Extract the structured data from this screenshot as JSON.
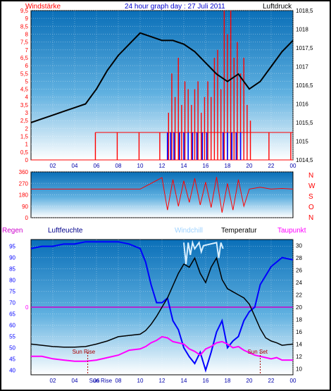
{
  "title": "24 hour graph day : 27 Juli 2011",
  "colors": {
    "red": "#ff0000",
    "blue": "#0000ff",
    "black": "#000000",
    "magenta": "#ff00ff",
    "lightblue": "#9fd3ff",
    "navy": "#00008b",
    "bg_top": "#0a6fb8",
    "bg_bottom": "#ffffff"
  },
  "x_ticks": [
    "02",
    "04",
    "06",
    "08",
    "10",
    "12",
    "14",
    "16",
    "18",
    "20",
    "22",
    "00"
  ],
  "chart_data": [
    {
      "type": "line",
      "name": "wind-and-pressure",
      "left_label": "Windstärke",
      "right_label": "Luftdruck",
      "left_ticks": [
        "0",
        "0,5",
        "1",
        "1,5",
        "2",
        "2,5",
        "3",
        "3,5",
        "4",
        "4,5",
        "5",
        "5,5",
        "6",
        "6,5",
        "7",
        "7,5",
        "8",
        "8,5",
        "9",
        "9,5"
      ],
      "right_ticks": [
        "1014,5",
        "1015",
        "1015,5",
        "1016",
        "1016,5",
        "1017",
        "1017,5",
        "1018",
        "1018,5"
      ],
      "ylim_left": [
        0,
        9.5
      ],
      "ylim_right": [
        1014.5,
        1018.5
      ],
      "x_hours": [
        0,
        24
      ],
      "pressure": {
        "x": [
          0,
          1,
          2,
          3,
          4,
          5,
          6,
          7,
          8,
          9,
          10,
          11,
          12,
          13,
          14,
          15,
          16,
          17,
          18,
          19,
          20,
          21,
          22,
          23,
          24
        ],
        "y": [
          1015.5,
          1015.6,
          1015.7,
          1015.8,
          1015.9,
          1016.0,
          1016.4,
          1016.9,
          1017.3,
          1017.6,
          1017.9,
          1017.8,
          1017.7,
          1017.7,
          1017.6,
          1017.4,
          1017.1,
          1016.8,
          1016.6,
          1016.8,
          1016.4,
          1016.6,
          1017.0,
          1017.4,
          1017.7
        ]
      },
      "wind_gust_note": "red bars = gusts, blue bars = average wind",
      "wind_gust_bars": [
        {
          "x": 5.9,
          "y": 1.75
        },
        {
          "x": 7.9,
          "y": 1.75
        },
        {
          "x": 9.9,
          "y": 1.75
        },
        {
          "x": 11.8,
          "y": 1.75
        },
        {
          "x": 12.6,
          "y": 3.0
        },
        {
          "x": 12.9,
          "y": 5.5
        },
        {
          "x": 13.2,
          "y": 4.0
        },
        {
          "x": 13.5,
          "y": 6.5
        },
        {
          "x": 13.8,
          "y": 3.5
        },
        {
          "x": 14.1,
          "y": 5.0
        },
        {
          "x": 14.4,
          "y": 4.5
        },
        {
          "x": 14.7,
          "y": 3.5
        },
        {
          "x": 15.0,
          "y": 4.5
        },
        {
          "x": 15.3,
          "y": 5.0
        },
        {
          "x": 15.6,
          "y": 3.0
        },
        {
          "x": 15.9,
          "y": 4.0
        },
        {
          "x": 16.2,
          "y": 5.0
        },
        {
          "x": 16.5,
          "y": 4.0
        },
        {
          "x": 16.8,
          "y": 6.5
        },
        {
          "x": 17.1,
          "y": 7.0
        },
        {
          "x": 17.4,
          "y": 4.5
        },
        {
          "x": 17.7,
          "y": 9.5
        },
        {
          "x": 18.0,
          "y": 8.0
        },
        {
          "x": 18.3,
          "y": 9.5
        },
        {
          "x": 18.6,
          "y": 6.5
        },
        {
          "x": 18.9,
          "y": 7.5
        },
        {
          "x": 19.2,
          "y": 5.5
        },
        {
          "x": 19.5,
          "y": 6.5
        },
        {
          "x": 19.8,
          "y": 3.5
        },
        {
          "x": 20.1,
          "y": 2.5
        },
        {
          "x": 21.8,
          "y": 1.75
        },
        {
          "x": 23.8,
          "y": 1.75
        }
      ],
      "wind_avg_bars": [
        {
          "x": 12.5,
          "y": 1.75
        },
        {
          "x": 12.8,
          "y": 1.75
        },
        {
          "x": 13.1,
          "y": 1.75
        },
        {
          "x": 13.6,
          "y": 1.75
        },
        {
          "x": 14.0,
          "y": 1.75
        },
        {
          "x": 14.4,
          "y": 1.75
        },
        {
          "x": 14.8,
          "y": 1.75
        },
        {
          "x": 15.2,
          "y": 1.75
        },
        {
          "x": 15.7,
          "y": 1.75
        },
        {
          "x": 16.1,
          "y": 1.75
        },
        {
          "x": 17.6,
          "y": 1.75
        },
        {
          "x": 18.0,
          "y": 1.75
        },
        {
          "x": 18.4,
          "y": 1.75
        },
        {
          "x": 18.8,
          "y": 1.75
        },
        {
          "x": 19.2,
          "y": 1.75
        }
      ]
    },
    {
      "type": "line",
      "name": "wind-direction",
      "left_ticks": [
        "0",
        "90",
        "180",
        "270",
        "360"
      ],
      "right_labels": [
        "N",
        "W",
        "S",
        "O",
        "N"
      ],
      "ylim": [
        0,
        360
      ],
      "series": {
        "x": [
          0,
          1,
          2,
          3,
          4,
          5,
          6,
          7,
          8,
          9,
          10,
          11,
          12,
          12.5,
          13,
          13.5,
          14,
          14.5,
          15,
          15.5,
          16,
          16.5,
          17,
          17.5,
          18,
          18.5,
          19,
          19.5,
          20,
          21,
          22,
          23,
          24
        ],
        "y": [
          225,
          225,
          225,
          225,
          225,
          225,
          225,
          225,
          225,
          225,
          225,
          270,
          315,
          60,
          300,
          90,
          290,
          120,
          310,
          100,
          280,
          80,
          320,
          40,
          270,
          60,
          300,
          90,
          225,
          240,
          225,
          230,
          225
        ]
      }
    },
    {
      "type": "line",
      "name": "humidity-temperature",
      "labels": {
        "regen": "Regen",
        "luftfeuchte": "Luftfeuchte",
        "windchill": "Windchill",
        "temperatur": "Temperatur",
        "taupunkt": "Taupunkt"
      },
      "left_ticks": [
        "40",
        "45",
        "50",
        "55",
        "60",
        "65",
        "70",
        "75",
        "80",
        "85",
        "90",
        "95"
      ],
      "right_ticks": [
        "10",
        "12",
        "14",
        "16",
        "18",
        "20",
        "22",
        "24",
        "26",
        "28",
        "30"
      ],
      "rain_value": "0",
      "ylim_left": [
        38,
        98
      ],
      "ylim_right": [
        9,
        31
      ],
      "sun_rise_label": "Sun Rise",
      "sun_set_label": "Sun Set",
      "x_tick_sunrise": "Sun Rise",
      "sun_rise_hour": 5.2,
      "sun_set_hour": 21.0,
      "humidity": {
        "x": [
          0,
          1,
          2,
          3,
          4,
          5,
          6,
          7,
          8,
          9,
          10,
          10.5,
          11,
          11.5,
          12,
          12.5,
          13,
          13.5,
          14,
          14.5,
          15,
          15.5,
          16,
          16.5,
          17,
          17.5,
          18,
          18.5,
          19,
          19.5,
          20,
          20.5,
          21,
          21.5,
          22,
          22.5,
          23,
          24
        ],
        "y": [
          94,
          95,
          95,
          96,
          96,
          97,
          97,
          97,
          97,
          96,
          94,
          88,
          78,
          70,
          70,
          72,
          62,
          58,
          50,
          46,
          43,
          48,
          40,
          48,
          57,
          62,
          50,
          53,
          55,
          62,
          66,
          68,
          78,
          82,
          86,
          88,
          90,
          89
        ]
      },
      "temperature": {
        "x": [
          0,
          1,
          2,
          3,
          4,
          5,
          6,
          7,
          8,
          9,
          10,
          10.5,
          11,
          11.5,
          12,
          12.5,
          13,
          13.5,
          14,
          14.5,
          15,
          15.5,
          16,
          16.5,
          17,
          17.5,
          18,
          18.5,
          19,
          19.5,
          20,
          20.5,
          21,
          21.5,
          22,
          22.5,
          23,
          24
        ],
        "y": [
          14.0,
          13.8,
          13.6,
          13.5,
          13.5,
          13.6,
          14.0,
          14.5,
          15.2,
          15.4,
          15.6,
          16.2,
          17.2,
          18.5,
          20.0,
          21.5,
          23.5,
          25.5,
          27.0,
          26.5,
          28.0,
          25.5,
          24.0,
          26.5,
          28.0,
          24.5,
          23.0,
          22.5,
          22.0,
          21.5,
          20.5,
          18.5,
          16.5,
          15.0,
          14.5,
          14.2,
          13.8,
          14.0
        ]
      },
      "windchill": {
        "x": [
          14,
          14.2,
          14.4,
          14.6,
          14.8,
          15,
          15.2,
          15.4,
          15.6,
          15.8,
          17,
          17.2,
          17.4,
          17.6
        ],
        "y": [
          30.5,
          27.0,
          30.5,
          28.5,
          30.5,
          29.5,
          30.0,
          30.5,
          29.0,
          30.0,
          30.5,
          28.0,
          30.5,
          29.5
        ]
      },
      "dewpoint": {
        "x": [
          0,
          1,
          2,
          3,
          4,
          5,
          6,
          7,
          8,
          9,
          10,
          10.5,
          11,
          11.5,
          12,
          12.5,
          13,
          13.5,
          14,
          14.5,
          15,
          15.5,
          16,
          16.5,
          17,
          17.5,
          18,
          18.5,
          19,
          19.5,
          20,
          20.5,
          21,
          21.5,
          22,
          22.5,
          23,
          24
        ],
        "y": [
          12.0,
          12.0,
          11.6,
          11.4,
          11.2,
          11.2,
          11.4,
          11.8,
          12.2,
          13.0,
          13.2,
          13.6,
          14.2,
          14.6,
          15.2,
          15.0,
          14.4,
          14.2,
          14.0,
          13.2,
          12.8,
          12.2,
          13.2,
          13.6,
          14.2,
          14.4,
          14.0,
          13.4,
          13.6,
          13.0,
          12.6,
          12.2,
          12.0,
          11.8,
          11.6,
          11.8,
          11.4,
          11.4
        ]
      }
    }
  ]
}
